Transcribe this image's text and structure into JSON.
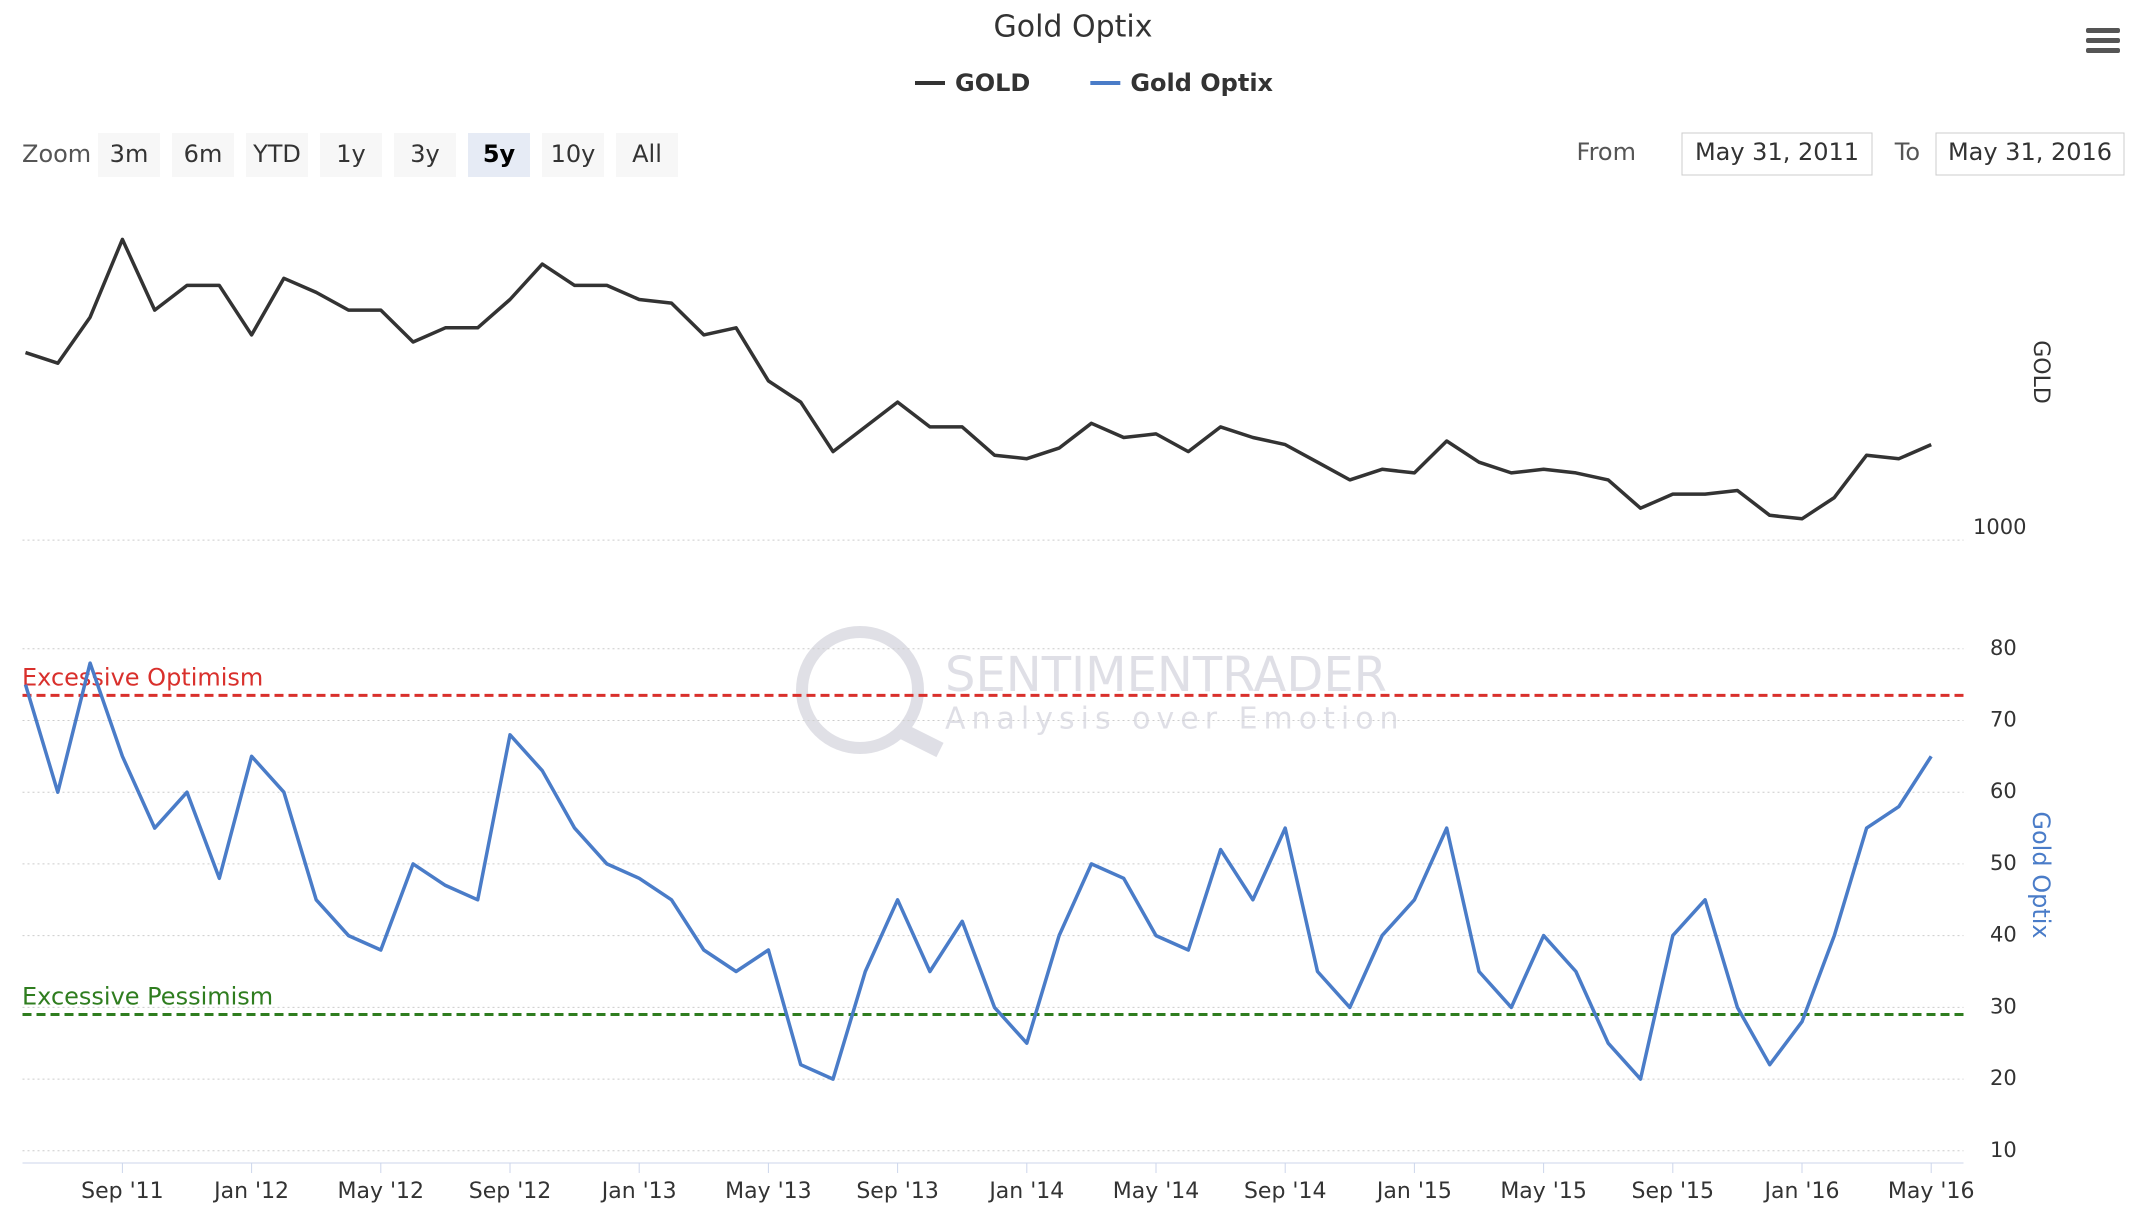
{
  "chart_data": {
    "type": "line",
    "title": "Gold Optix",
    "zoom_label": "Zoom",
    "zoom_buttons": [
      "3m",
      "6m",
      "YTD",
      "1y",
      "3y",
      "5y",
      "10y",
      "All"
    ],
    "selected_zoom": "5y",
    "from_label": "From",
    "from": "May 31, 2011",
    "to_label": "To",
    "to": "May 31, 2016",
    "watermark": {
      "name": "SENTIMENTRADER",
      "tagline": "Analysis over Emotion"
    },
    "y_label": "GOLD",
    "y2_label": "Gold Optix",
    "xlim": [
      "2011-06",
      "2016-06"
    ],
    "xticks": [
      {
        "value": "2011-09",
        "label": "Sep '11"
      },
      {
        "value": "2012-01",
        "label": "Jan '12"
      },
      {
        "value": "2012-05",
        "label": "May '12"
      },
      {
        "value": "2012-09",
        "label": "Sep '12"
      },
      {
        "value": "2013-01",
        "label": "Jan '13"
      },
      {
        "value": "2013-05",
        "label": "May '13"
      },
      {
        "value": "2013-09",
        "label": "Sep '13"
      },
      {
        "value": "2014-01",
        "label": "Jan '14"
      },
      {
        "value": "2014-05",
        "label": "May '14"
      },
      {
        "value": "2014-09",
        "label": "Sep '14"
      },
      {
        "value": "2015-01",
        "label": "Jan '15"
      },
      {
        "value": "2015-05",
        "label": "May '15"
      },
      {
        "value": "2015-09",
        "label": "Sep '15"
      },
      {
        "value": "2016-01",
        "label": "Jan '16"
      },
      {
        "value": "2016-05",
        "label": "May '16"
      }
    ],
    "ylim": [
      873,
      1950
    ],
    "yticks": [
      1000
    ],
    "y2lim": [
      8.3,
      86.8
    ],
    "y2ticks": [
      10,
      20,
      30,
      40,
      50,
      60,
      70,
      80
    ],
    "grid": true,
    "legend": "top",
    "x": [
      "2011-06",
      "2011-07",
      "2011-08",
      "2011-09",
      "2011-10",
      "2011-11",
      "2011-12",
      "2012-01",
      "2012-02",
      "2012-03",
      "2012-04",
      "2012-05",
      "2012-06",
      "2012-07",
      "2012-08",
      "2012-09",
      "2012-10",
      "2012-11",
      "2012-12",
      "2013-01",
      "2013-02",
      "2013-03",
      "2013-04",
      "2013-05",
      "2013-06",
      "2013-07",
      "2013-08",
      "2013-09",
      "2013-10",
      "2013-11",
      "2013-12",
      "2014-01",
      "2014-02",
      "2014-03",
      "2014-04",
      "2014-05",
      "2014-06",
      "2014-07",
      "2014-08",
      "2014-09",
      "2014-10",
      "2014-11",
      "2014-12",
      "2015-01",
      "2015-02",
      "2015-03",
      "2015-04",
      "2015-05",
      "2015-06",
      "2015-07",
      "2015-08",
      "2015-09",
      "2015-10",
      "2015-11",
      "2015-12",
      "2016-01",
      "2016-02",
      "2016-03",
      "2016-04",
      "2016-05"
    ],
    "series": [
      {
        "name": "GOLD",
        "color": "#333333",
        "values": [
          1530,
          1500,
          1630,
          1850,
          1650,
          1720,
          1720,
          1580,
          1740,
          1700,
          1650,
          1650,
          1560,
          1600,
          1600,
          1680,
          1780,
          1720,
          1720,
          1680,
          1670,
          1580,
          1600,
          1450,
          1390,
          1250,
          1320,
          1390,
          1320,
          1320,
          1240,
          1230,
          1260,
          1330,
          1290,
          1300,
          1250,
          1320,
          1290,
          1270,
          1220,
          1170,
          1200,
          1190,
          1280,
          1220,
          1190,
          1200,
          1190,
          1170,
          1090,
          1130,
          1130,
          1140,
          1070,
          1060,
          1120,
          1240,
          1230,
          1270
        ]
      },
      {
        "name": "Gold Optix",
        "color": "#4a7cc8",
        "axis": "y2",
        "values": [
          75,
          60,
          78,
          65,
          55,
          60,
          48,
          65,
          60,
          45,
          40,
          38,
          50,
          47,
          45,
          68,
          63,
          55,
          50,
          48,
          45,
          38,
          35,
          38,
          22,
          20,
          35,
          45,
          35,
          42,
          30,
          25,
          40,
          50,
          48,
          40,
          38,
          52,
          45,
          55,
          35,
          30,
          40,
          45,
          55,
          35,
          30,
          40,
          35,
          25,
          20,
          40,
          45,
          30,
          22,
          28,
          40,
          55,
          58,
          65
        ]
      }
    ],
    "annotations": [
      {
        "label": "Excessive Optimism",
        "value": 73.5,
        "color": "#d9302c"
      },
      {
        "label": "Excessive Pessimism",
        "value": 29,
        "color": "#2f7d1f"
      }
    ]
  }
}
